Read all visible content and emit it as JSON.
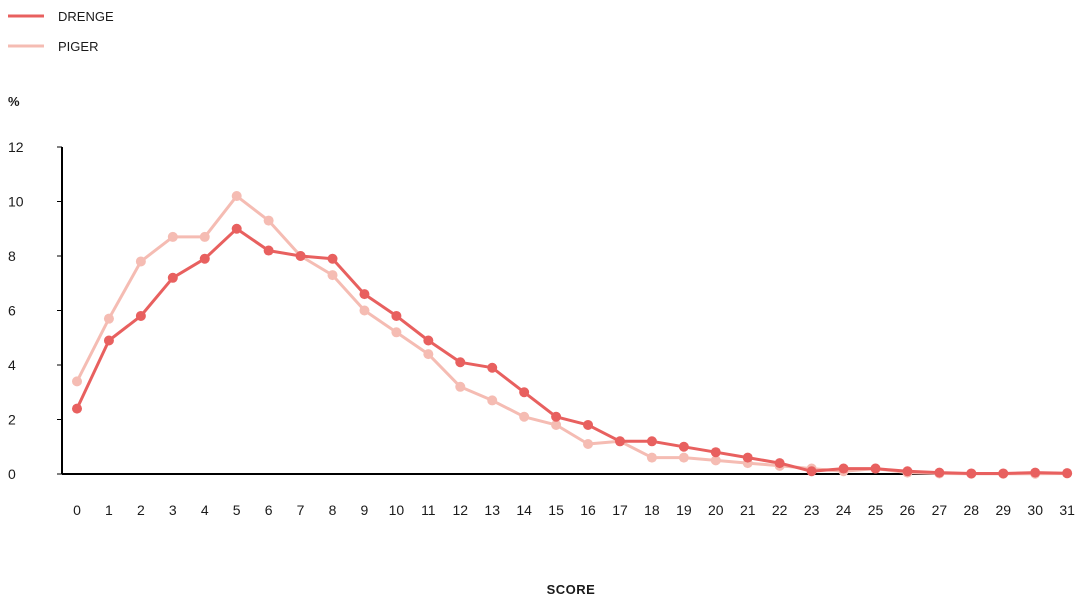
{
  "chart_data": {
    "type": "line",
    "xlabel": "SCORE",
    "ylabel": "%",
    "ylim": [
      0,
      12
    ],
    "yticks": [
      0,
      2,
      4,
      6,
      8,
      10,
      12
    ],
    "legend_position": "top-left",
    "grid": false,
    "x": [
      0,
      1,
      2,
      3,
      4,
      5,
      6,
      7,
      8,
      9,
      10,
      11,
      12,
      13,
      14,
      15,
      16,
      17,
      18,
      19,
      20,
      21,
      22,
      23,
      24,
      25,
      26,
      27,
      28,
      29,
      30,
      31
    ],
    "series": [
      {
        "name": "DRENGE",
        "color": "#e8605f",
        "values": [
          2.4,
          4.9,
          5.8,
          7.2,
          7.9,
          9.0,
          8.2,
          8.0,
          7.9,
          6.6,
          5.8,
          4.9,
          4.1,
          3.9,
          3.0,
          2.1,
          1.8,
          1.2,
          1.2,
          1.0,
          0.8,
          0.6,
          0.4,
          0.1,
          0.2,
          0.2,
          0.1,
          0.05,
          0.02,
          0.02,
          0.05,
          0.03
        ]
      },
      {
        "name": "PIGER",
        "color": "#f5bcb3",
        "values": [
          3.4,
          5.7,
          7.8,
          8.7,
          8.7,
          10.2,
          9.3,
          8.0,
          7.3,
          6.0,
          5.2,
          4.4,
          3.2,
          2.7,
          2.1,
          1.8,
          1.1,
          1.2,
          0.6,
          0.6,
          0.5,
          0.4,
          0.3,
          0.2,
          0.1,
          0.2,
          0.05,
          0.02,
          0.01,
          0.01,
          0.01,
          0.02
        ]
      }
    ]
  }
}
